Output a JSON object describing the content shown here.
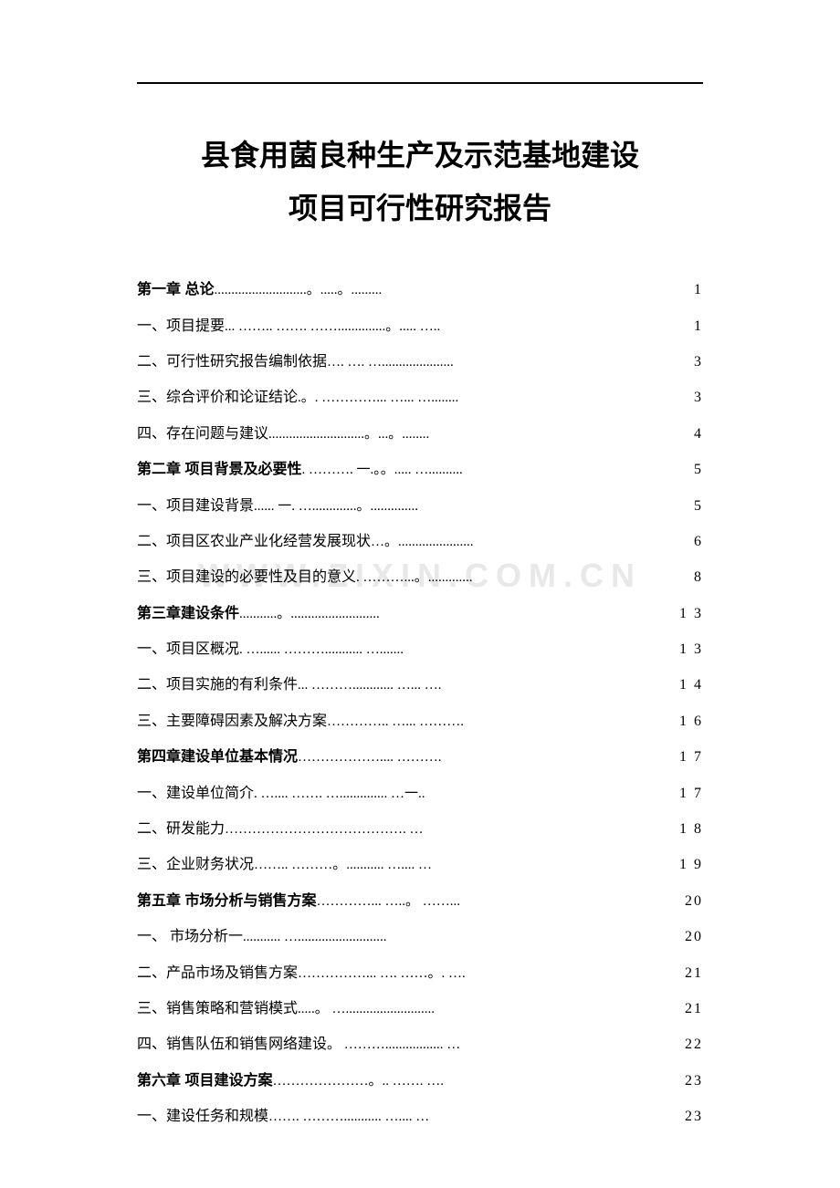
{
  "title_line1": "县食用菌良种生产及示范基地建设",
  "title_line2": "项目可行性研究报告",
  "watermark_text": "WWW.ZIXIN.COM.CN",
  "colors": {
    "background": "#ffffff",
    "text": "#000000",
    "watermark": "#e8e8e8",
    "rule": "#000000"
  },
  "typography": {
    "title_fontsize": 32,
    "body_fontsize": 16,
    "title_family": "SimHei",
    "body_family": "SimSun"
  },
  "toc": [
    {
      "label": "第一章  总论",
      "leader": "...........................。.....。.........",
      "page": "1",
      "bold": true
    },
    {
      "label": "一、项目提要",
      "leader": "... ……..  ……. ……..............。.....  …..",
      "page": "1",
      "bold": false
    },
    {
      "label": "二、可行性研究报告编制依据",
      "leader": "…. …. ….....................",
      "page": "3",
      "bold": false
    },
    {
      "label": "三、综合评价和论证结论",
      "leader": ".。. …………...  …...  …........",
      "page": "3",
      "bold": false
    },
    {
      "label": "四、存在问题与建议",
      "leader": "............................。...。........",
      "page": "4",
      "bold": false
    },
    {
      "label": "第二章  项目背景及必要性",
      "leader": ". ………. 一.。。.....  …..........",
      "page": "5",
      "bold": true
    },
    {
      "label": "一、项目建设背景",
      "leader": "...... 一. ….............。..............",
      "page": "5",
      "bold": false
    },
    {
      "label": "二、项目区农业产业化经营发展现状",
      "leader": "…。......................",
      "page": "6",
      "bold": false
    },
    {
      "label": "三、项目建设的必要性及目的意义",
      "leader": ". ………...。.............",
      "page": "8",
      "bold": false
    },
    {
      "label": "第三章建设条件",
      "leader": "...........。..........................",
      "page": "1 3",
      "bold": true
    },
    {
      "label": "一、项目区概况",
      "leader": ". …......  ………...........  ….......",
      "page": "1 3",
      "bold": false
    },
    {
      "label": "二、项目实施的有利条件",
      "leader": "...  ………............  …...  ….",
      "page": "1 4",
      "bold": false
    },
    {
      "label": "三、主要障碍因素及解决方案",
      "leader": "…………..  …...  ……….",
      "page": "1 6",
      "bold": false
    },
    {
      "label": "第四章建设单位基本情况",
      "leader": "………………....  ……….",
      "page": "1 7",
      "bold": true
    },
    {
      "label": "一、建设单位简介",
      "leader": ". …....  ……. …..............  …一..",
      "page": "1 7",
      "bold": false
    },
    {
      "label": "二、研发能力",
      "leader": "…………………………………. …",
      "page": "1 8",
      "bold": false
    },
    {
      "label": "三、企业财务状况",
      "leader": "……..  ………。...........  …....  …",
      "page": "1 9",
      "bold": false
    },
    {
      "label": "第五章  市场分析与销售方案",
      "leader": "…………...  …..。 ……...",
      "page": "20",
      "bold": true
    },
    {
      "label": "一、  市场分析一",
      "leader": "...........  …..........................",
      "page": "20",
      "bold": false
    },
    {
      "label": "二、产品市场及销售方案",
      "leader": "……………...  …. ……。.  ….",
      "page": "21",
      "bold": false
    },
    {
      "label": "三、销售策略和营销模式",
      "leader": ".....。 …..........................",
      "page": "21",
      "bold": false
    },
    {
      "label": "四、销售队伍和销售网络建设",
      "leader": "。 ……….................  …",
      "page": "22",
      "bold": false
    },
    {
      "label": "第六章  项目建设方案",
      "leader": "…………………。..  ……. ….",
      "page": "23",
      "bold": true
    },
    {
      "label": "一、建设任务和规模",
      "leader": "……. ………...........  …....  …",
      "page": "23",
      "bold": false
    }
  ]
}
